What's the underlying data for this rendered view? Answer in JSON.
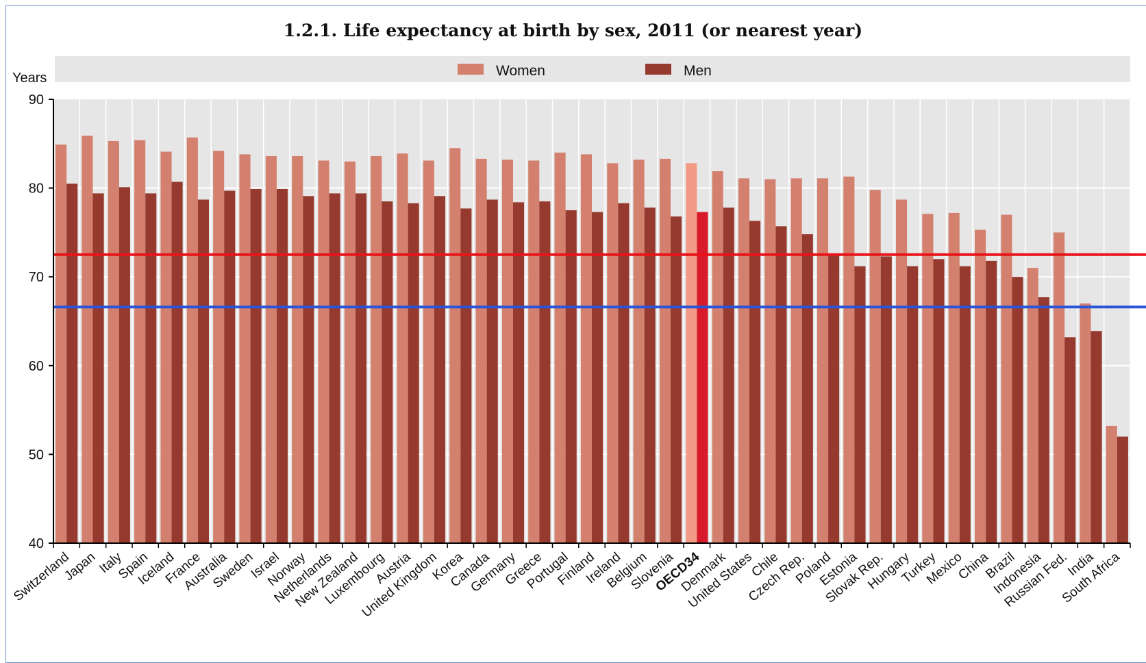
{
  "chart_data": {
    "type": "bar",
    "title": "1.2.1. Life expectancy at birth by sex, 2011 (or nearest year)",
    "ylabel": "Years",
    "xlabel": "",
    "ylim": [
      40,
      90
    ],
    "yticks": [
      40,
      50,
      60,
      70,
      80,
      90
    ],
    "grid": true,
    "legend_position": "top",
    "highlight_category": "OECD34",
    "categories": [
      "Switzerland",
      "Japan",
      "Italy",
      "Spain",
      "Iceland",
      "France",
      "Australia",
      "Sweden",
      "Israel",
      "Norway",
      "Netherlands",
      "New Zealand",
      "Luxembourg",
      "Austria",
      "United Kingdom",
      "Korea",
      "Canada",
      "Germany",
      "Greece",
      "Portugal",
      "Finland",
      "Ireland",
      "Belgium",
      "Slovenia",
      "OECD34",
      "Denmark",
      "United States",
      "Chile",
      "Czech Rep.",
      "Poland",
      "Estonia",
      "Slovak Rep.",
      "Hungary",
      "Turkey",
      "Mexico",
      "China",
      "Brazil",
      "Indonesia",
      "Russian Fed.",
      "India",
      "South Africa"
    ],
    "series": [
      {
        "name": "Women",
        "color": "#d4806f",
        "highlight_color": "#f29a85",
        "values": [
          84.9,
          85.9,
          85.3,
          85.4,
          84.1,
          85.7,
          84.2,
          83.8,
          83.6,
          83.6,
          83.1,
          83.0,
          83.6,
          83.9,
          83.1,
          84.5,
          83.3,
          83.2,
          83.1,
          84.0,
          83.8,
          82.8,
          83.2,
          83.3,
          82.8,
          81.9,
          81.1,
          81.0,
          81.1,
          81.1,
          81.3,
          79.8,
          78.7,
          77.1,
          77.2,
          75.3,
          77.0,
          71.0,
          75.0,
          67.0,
          53.2
        ]
      },
      {
        "name": "Men",
        "color": "#963a30",
        "highlight_color": "#d81b2b",
        "values": [
          80.5,
          79.4,
          80.1,
          79.4,
          80.7,
          78.7,
          79.7,
          79.9,
          79.9,
          79.1,
          79.4,
          79.4,
          78.5,
          78.3,
          79.1,
          77.7,
          78.7,
          78.4,
          78.5,
          77.5,
          77.3,
          78.3,
          77.8,
          76.8,
          77.3,
          77.8,
          76.3,
          75.7,
          74.8,
          72.5,
          71.2,
          72.3,
          71.2,
          72.0,
          71.2,
          71.8,
          70.0,
          67.7,
          63.2,
          63.9,
          52.0
        ]
      }
    ],
    "reference_lines": [
      {
        "value": 72.5,
        "color": "#e8141a"
      },
      {
        "value": 66.6,
        "color": "#2a55d8"
      }
    ]
  }
}
